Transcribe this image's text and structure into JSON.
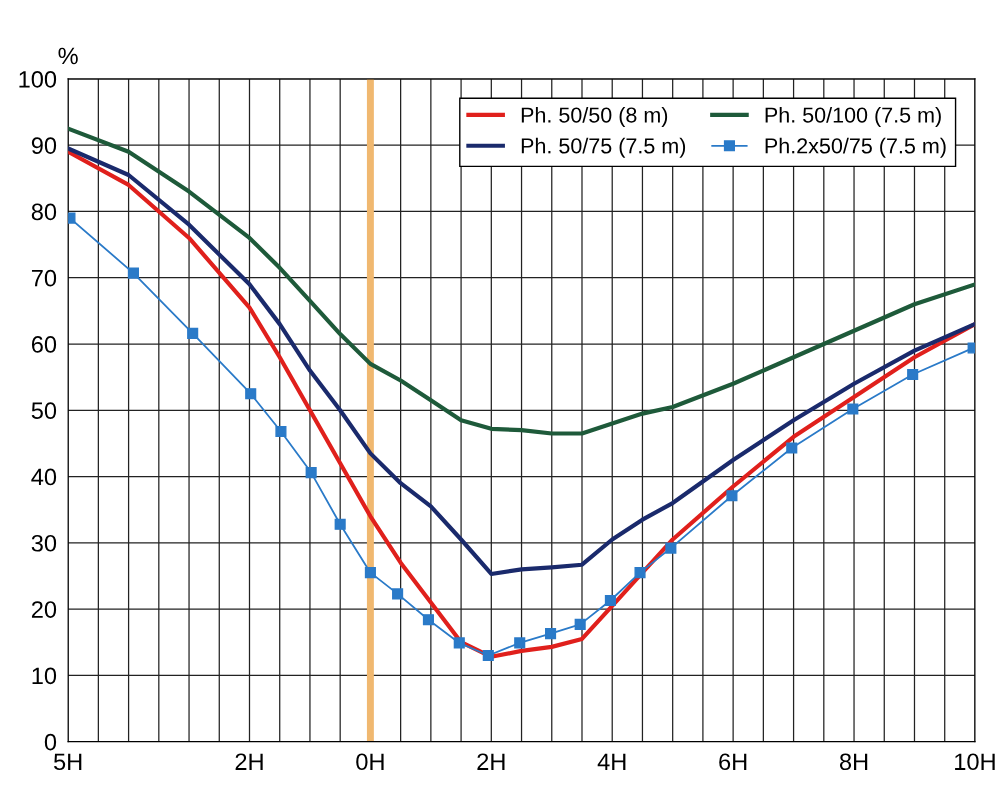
{
  "chart_data": {
    "type": "line",
    "ylabel": "%",
    "x": [
      -5,
      -4,
      -3,
      -2,
      -1.5,
      -1,
      -0.5,
      0,
      0.5,
      1,
      1.5,
      2,
      2.5,
      3,
      3.5,
      4,
      4.5,
      5,
      6,
      7,
      8,
      9,
      10
    ],
    "series": [
      {
        "name": "Ph. 50/50 (8 m)",
        "color": "#e0201c",
        "marker": "none",
        "values": [
          89,
          84,
          76,
          65.5,
          58,
          50,
          42,
          34,
          27,
          21,
          15,
          12.8,
          13.7,
          14.3,
          15.5,
          20.5,
          25.5,
          30.5,
          38.5,
          46,
          52,
          58,
          63
        ]
      },
      {
        "name": "Ph. 50/75 (7.5 m)",
        "color": "#1a2a6c",
        "marker": "none",
        "values": [
          89.5,
          85.5,
          78,
          69,
          63,
          56,
          50,
          43.5,
          39,
          35.5,
          30.5,
          25.3,
          26,
          26.3,
          26.7,
          30.5,
          33.5,
          36,
          42.5,
          48.5,
          54,
          59,
          63
        ]
      },
      {
        "name": "Ph. 50/100 (7.5 m)",
        "color": "#1e5a3a",
        "marker": "none",
        "values": [
          92.5,
          89,
          83,
          76,
          71.5,
          66.5,
          61.5,
          57,
          54.5,
          51.5,
          48.5,
          47.2,
          47,
          46.5,
          46.5,
          48,
          49.5,
          50.5,
          54,
          58,
          62,
          66,
          69
        ]
      },
      {
        "name": "Ph.2x50/75 (7.5 m)",
        "color": "#2a7ac8",
        "marker": "square",
        "x": [
          -4.97,
          -3.92,
          -2.94,
          -1.98,
          -1.48,
          -0.98,
          -0.5,
          0,
          0.45,
          0.96,
          1.47,
          1.95,
          2.47,
          2.98,
          3.47,
          3.97,
          4.46,
          4.97,
          5.98,
          6.97,
          7.98,
          8.97,
          9.97
        ],
        "values": [
          79,
          70.7,
          61.6,
          52.5,
          46.8,
          40.6,
          32.8,
          25.5,
          22.3,
          18.4,
          14.9,
          13,
          14.9,
          16.3,
          17.7,
          21.3,
          25.5,
          29.2,
          37.1,
          44.3,
          50.2,
          55.4,
          59.4
        ]
      }
    ],
    "xlim": [
      -5,
      10
    ],
    "xticks": [
      {
        "value": -5,
        "label": "5H"
      },
      {
        "value": -4.5,
        "label": null
      },
      {
        "value": -4,
        "label": null
      },
      {
        "value": -3.5,
        "label": null
      },
      {
        "value": -3,
        "label": null
      },
      {
        "value": -2.5,
        "label": null
      },
      {
        "value": -2,
        "label": "2H"
      },
      {
        "value": -1.5,
        "label": null
      },
      {
        "value": -1,
        "label": null
      },
      {
        "value": -0.5,
        "label": null
      },
      {
        "value": 0,
        "label": "0H"
      },
      {
        "value": 0.5,
        "label": null
      },
      {
        "value": 1,
        "label": null
      },
      {
        "value": 1.5,
        "label": null
      },
      {
        "value": 2,
        "label": "2H"
      },
      {
        "value": 2.5,
        "label": null
      },
      {
        "value": 3,
        "label": null
      },
      {
        "value": 3.5,
        "label": null
      },
      {
        "value": 4,
        "label": "4H"
      },
      {
        "value": 4.5,
        "label": null
      },
      {
        "value": 5,
        "label": null
      },
      {
        "value": 5.5,
        "label": null
      },
      {
        "value": 6,
        "label": "6H"
      },
      {
        "value": 6.5,
        "label": null
      },
      {
        "value": 7,
        "label": null
      },
      {
        "value": 7.5,
        "label": null
      },
      {
        "value": 8,
        "label": "8H"
      },
      {
        "value": 8.5,
        "label": null
      },
      {
        "value": 9,
        "label": null
      },
      {
        "value": 9.5,
        "label": null
      },
      {
        "value": 10,
        "label": "10H"
      }
    ],
    "ylim": [
      0,
      100
    ],
    "yticks": [
      0,
      10,
      20,
      30,
      40,
      50,
      60,
      70,
      80,
      90,
      100
    ],
    "ref_lines": [
      {
        "axis": "x",
        "value": 0,
        "color": "#f0b870"
      }
    ],
    "grid": true,
    "legend": "top right"
  }
}
